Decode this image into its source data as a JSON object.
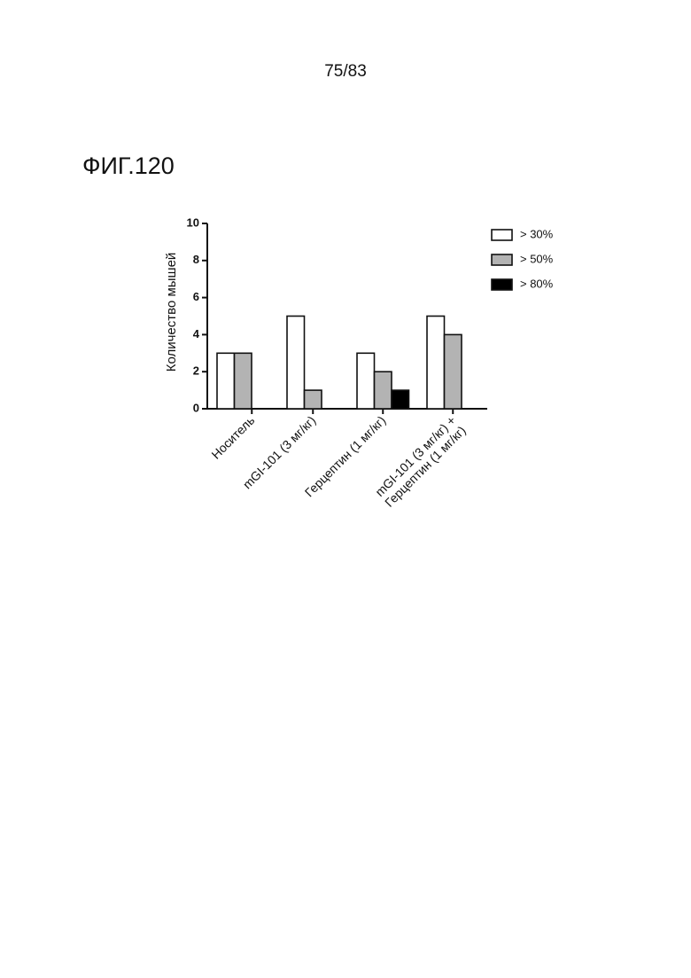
{
  "page_number": "75/83",
  "figure_label": "ФИГ.120",
  "chart_data": {
    "type": "bar",
    "y_label": "Количество мышей",
    "categories": [
      "Носитель",
      "mGI-101 (3 мг/кг)",
      "Герцептин (1 мг/кг)",
      "mGI-101 (3 мг/кг) +\nГерцептин (1 мг/кг)"
    ],
    "series": [
      {
        "name": "> 30%",
        "color": "#ffffff",
        "values": [
          3,
          5,
          3,
          5
        ]
      },
      {
        "name": "> 50%",
        "color": "#b3b3b3",
        "values": [
          3,
          1,
          2,
          4
        ]
      },
      {
        "name": "> 80%",
        "color": "#000000",
        "values": [
          0,
          0,
          1,
          0
        ]
      }
    ],
    "ylim": [
      0,
      10
    ],
    "yticks": [
      0,
      2,
      4,
      6,
      8,
      10
    ],
    "legend": "top-right"
  }
}
